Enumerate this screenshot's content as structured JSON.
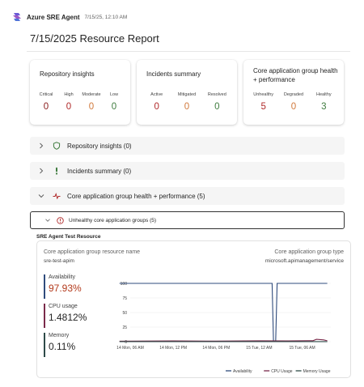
{
  "header": {
    "app_name": "Azure SRE Agent",
    "timestamp": "7/15/25, 12:10 AM",
    "logo_icon": "azure-sre-agent-logo"
  },
  "page_title": "7/15/2025 Resource Report",
  "cards": [
    {
      "title": "Repository insights",
      "metrics": [
        {
          "label": "Critical",
          "value": "0",
          "color": "#8a1c1c"
        },
        {
          "label": "High",
          "value": "0",
          "color": "#b02a2a"
        },
        {
          "label": "Moderate",
          "value": "0",
          "color": "#d1793c"
        },
        {
          "label": "Low",
          "value": "0",
          "color": "#3f7c3f"
        }
      ]
    },
    {
      "title": "Incidents summary",
      "metrics": [
        {
          "label": "Active",
          "value": "0",
          "color": "#b02a2a"
        },
        {
          "label": "Mitigated",
          "value": "0",
          "color": "#d1793c"
        },
        {
          "label": "Resolved",
          "value": "0",
          "color": "#3f7c3f"
        }
      ]
    },
    {
      "title": "Core application group health + performance",
      "metrics": [
        {
          "label": "Unhealthy",
          "value": "5",
          "color": "#b02a2a"
        },
        {
          "label": "Degraded",
          "value": "0",
          "color": "#d1793c"
        },
        {
          "label": "Healthy",
          "value": "3",
          "color": "#3f7c3f"
        }
      ]
    }
  ],
  "accordions": [
    {
      "label": "Repository insights (0)",
      "icon": "shield-icon",
      "expanded": false
    },
    {
      "label": "Incidents summary (0)",
      "icon": "exclamation-icon",
      "expanded": false
    },
    {
      "label": "Core application group health + performance (5)",
      "icon": "heartbeat-icon",
      "expanded": true
    }
  ],
  "sub_accordion": {
    "label": "Unhealthy core application groups (5)",
    "icon": "info-circle-icon"
  },
  "resource": {
    "title": "SRE Agent Test Resource",
    "name_label": "Core application group resource name",
    "name_value": "sre-test-apim",
    "type_label": "Core application group type",
    "type_value": "microsoft.apimanagement/service"
  },
  "stats": [
    {
      "label": "Availability",
      "value": "97.93%",
      "color": "#2f4b7c",
      "value_color": "#b33a1c"
    },
    {
      "label": "CPU usage",
      "value": "1.4812%",
      "color": "#7a2a4a",
      "value_color": "#242424"
    },
    {
      "label": "Memory",
      "value": "0.11%",
      "color": "#2e4a48",
      "value_color": "#242424"
    }
  ],
  "chart_data": {
    "type": "line",
    "x_ticks": [
      "14 Mon, 06 AM",
      "14 Mon, 12 PM",
      "14 Mon, 06 PM",
      "15 Tue, 12 AM",
      "15 Tue, 06 AM"
    ],
    "y_ticks": [
      "0",
      "25",
      "50",
      "75",
      "100"
    ],
    "ylim": [
      0,
      100
    ],
    "x_range_hours": [
      0,
      28
    ],
    "x_tick_hours": [
      0,
      6,
      12,
      18,
      24
    ],
    "series": [
      {
        "name": "Availability",
        "color": "#2f4b7c",
        "points": [
          [
            -1.5,
            100
          ],
          [
            19.8,
            100
          ],
          [
            20.0,
            0
          ],
          [
            20.3,
            0
          ],
          [
            20.5,
            100
          ],
          [
            27.5,
            100
          ]
        ]
      },
      {
        "name": "CPU Usage",
        "color": "#7a2a4a",
        "points": [
          [
            -1.5,
            0.8
          ],
          [
            6,
            1.2
          ],
          [
            12,
            1.0
          ],
          [
            18,
            1.5
          ],
          [
            22,
            1.3
          ],
          [
            25.5,
            1.6
          ],
          [
            26,
            4
          ],
          [
            27,
            3
          ],
          [
            27.5,
            1.5
          ]
        ]
      },
      {
        "name": "Memory Usage",
        "color": "#2e4a48",
        "points": [
          [
            -1.5,
            0.1
          ],
          [
            27.5,
            0.1
          ]
        ]
      }
    ],
    "legend_position": "bottom-right"
  }
}
